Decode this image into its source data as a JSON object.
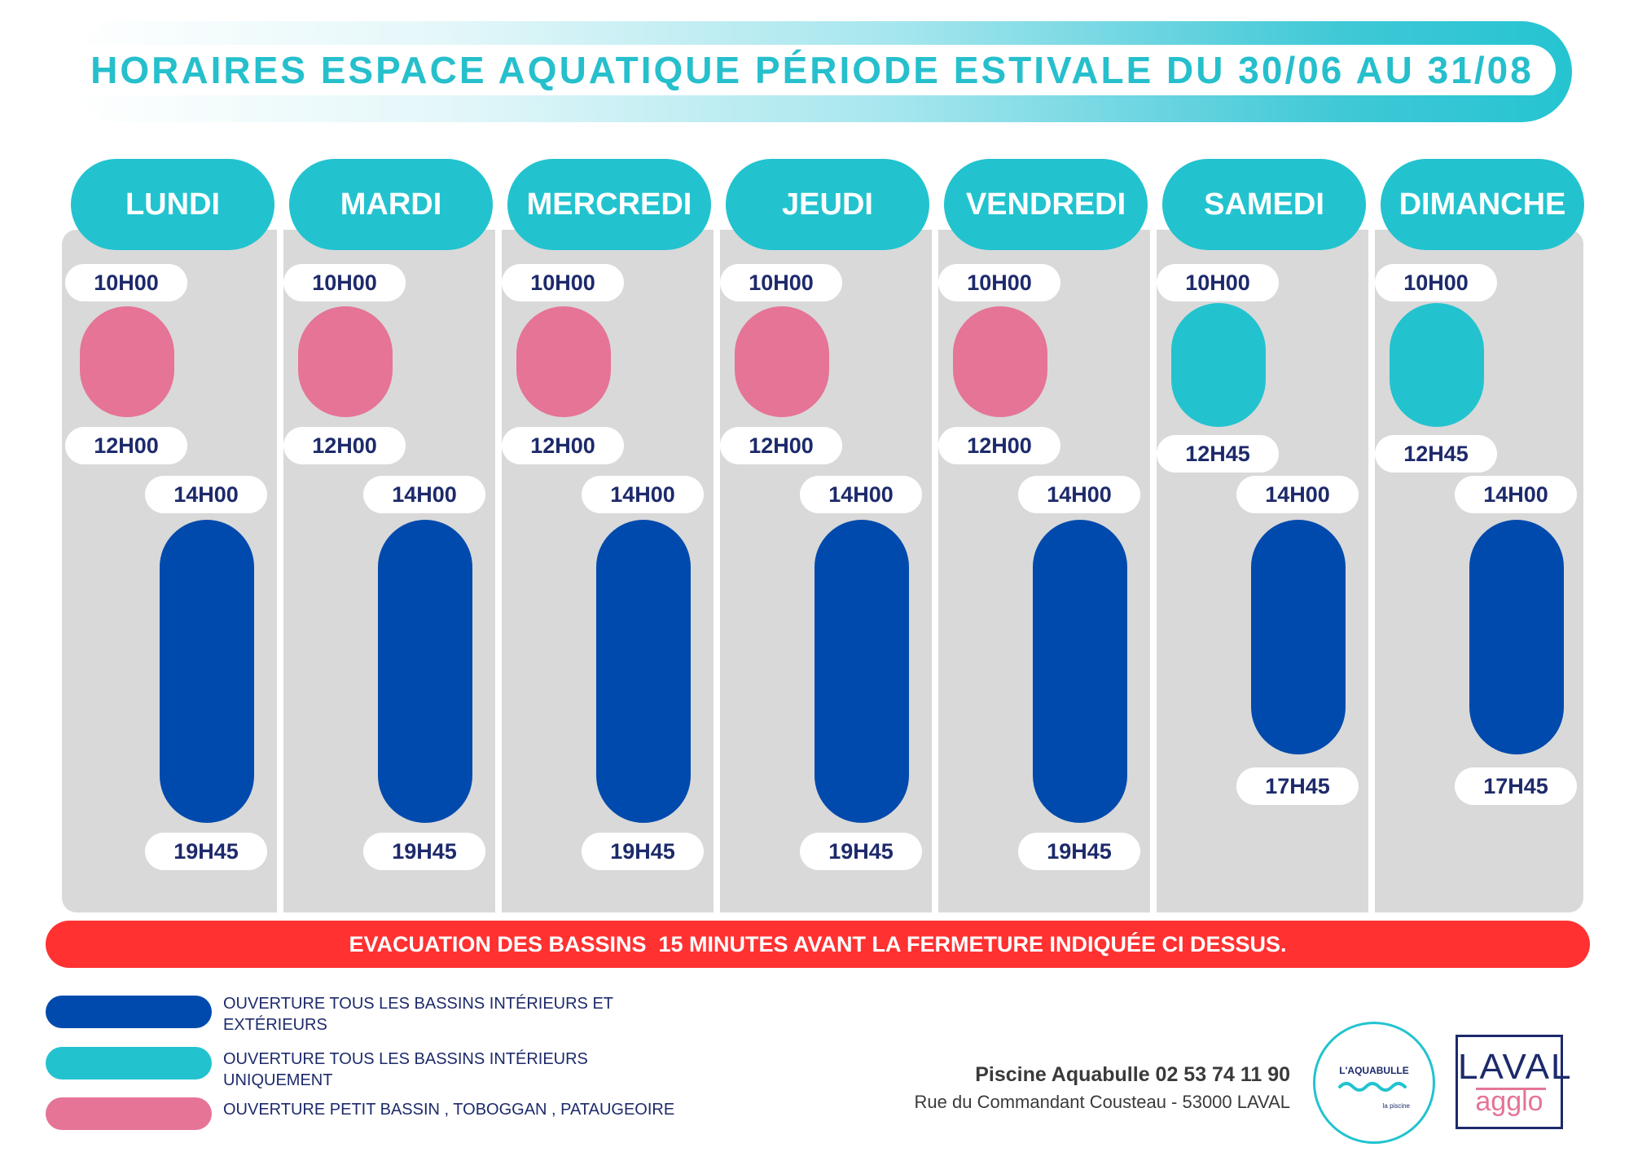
{
  "title": "HORAIRES ESPACE AQUATIQUE PÉRIODE ESTIVALE DU 30/06 AU 31/08",
  "days": [
    {
      "name": "LUNDI",
      "morning": {
        "open": "10H00",
        "close": "12H00",
        "type": "pink"
      },
      "afternoon": {
        "open": "14H00",
        "close": "19H45",
        "type": "navy"
      }
    },
    {
      "name": "MARDI",
      "morning": {
        "open": "10H00",
        "close": "12H00",
        "type": "pink"
      },
      "afternoon": {
        "open": "14H00",
        "close": "19H45",
        "type": "navy"
      }
    },
    {
      "name": "MERCREDI",
      "morning": {
        "open": "10H00",
        "close": "12H00",
        "type": "pink"
      },
      "afternoon": {
        "open": "14H00",
        "close": "19H45",
        "type": "navy"
      }
    },
    {
      "name": "JEUDI",
      "morning": {
        "open": "10H00",
        "close": "12H00",
        "type": "pink"
      },
      "afternoon": {
        "open": "14H00",
        "close": "19H45",
        "type": "navy"
      }
    },
    {
      "name": "VENDREDI",
      "morning": {
        "open": "10H00",
        "close": "12H00",
        "type": "pink"
      },
      "afternoon": {
        "open": "14H00",
        "close": "19H45",
        "type": "navy"
      }
    },
    {
      "name": "SAMEDI",
      "morning": {
        "open": "10H00",
        "close": "12H45",
        "type": "teal"
      },
      "afternoon": {
        "open": "14H00",
        "close": "17H45",
        "type": "navy"
      }
    },
    {
      "name": "DIMANCHE",
      "morning": {
        "open": "10H00",
        "close": "12H45",
        "type": "teal"
      },
      "afternoon": {
        "open": "14H00",
        "close": "17H45",
        "type": "navy"
      }
    }
  ],
  "evacuation": "EVACUATION DES BASSINS  15 MINUTES AVANT LA FERMETURE INDIQUÉE CI DESSUS.",
  "legend": [
    {
      "label": "OUVERTURE TOUS LES BASSINS INTÉRIEURS ET EXTÉRIEURS",
      "color": "#004aad"
    },
    {
      "label": "OUVERTURE TOUS LES BASSINS INTÉRIEURS UNIQUEMENT",
      "color": "#22c3cf"
    },
    {
      "label": "OUVERTURE PETIT BASSIN , TOBOGGAN , PATAUGEOIRE",
      "color": "#e57496"
    }
  ],
  "contact": {
    "name": "Piscine Aquabulle 02 53 74 11 90",
    "address": "Rue du Commandant Cousteau - 53000 LAVAL"
  },
  "logos": {
    "aquabulle": {
      "brand": "L'AQUABULLE",
      "sub": "la piscine"
    },
    "laval": {
      "line1": "LAVAL",
      "line2": "agglo"
    }
  },
  "colors": {
    "teal": "#22c3cf",
    "navy": "#004aad",
    "pink": "#e57496",
    "red": "#ff3131",
    "panel": "#d9d9d9",
    "text": "#1d2a6b"
  }
}
